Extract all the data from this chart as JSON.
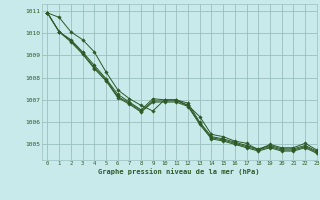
{
  "title": "Graphe pression niveau de la mer (hPa)",
  "background_color": "#c8eaea",
  "grid_color": "#9bbfbf",
  "line_color": "#2d5a27",
  "xlim": [
    -0.5,
    23
  ],
  "ylim": [
    1004.3,
    1011.3
  ],
  "yticks": [
    1005,
    1006,
    1007,
    1008,
    1009,
    1010,
    1011
  ],
  "xticks": [
    0,
    1,
    2,
    3,
    4,
    5,
    6,
    7,
    8,
    9,
    10,
    11,
    12,
    13,
    14,
    15,
    16,
    17,
    18,
    19,
    20,
    21,
    22,
    23
  ],
  "series": [
    [
      1010.9,
      1010.7,
      1010.05,
      1009.7,
      1009.15,
      1008.25,
      1007.45,
      1007.05,
      1006.75,
      1006.5,
      1007.0,
      1007.0,
      1006.75,
      1006.25,
      1005.45,
      1005.35,
      1005.15,
      1005.05,
      1004.75,
      1005.0,
      1004.85,
      1004.85,
      1005.05,
      1004.75
    ],
    [
      1010.9,
      1010.05,
      1009.7,
      1009.15,
      1008.55,
      1007.95,
      1007.25,
      1006.9,
      1006.55,
      1007.05,
      1007.0,
      1007.0,
      1006.85,
      1006.0,
      1005.35,
      1005.25,
      1005.1,
      1004.95,
      1004.8,
      1004.95,
      1004.8,
      1004.8,
      1004.95,
      1004.7
    ],
    [
      1010.9,
      1010.05,
      1009.65,
      1009.1,
      1008.45,
      1007.9,
      1007.15,
      1006.85,
      1006.5,
      1006.95,
      1006.95,
      1006.95,
      1006.75,
      1005.95,
      1005.3,
      1005.2,
      1005.05,
      1004.9,
      1004.75,
      1004.9,
      1004.75,
      1004.75,
      1004.9,
      1004.65
    ],
    [
      1010.9,
      1010.05,
      1009.6,
      1009.05,
      1008.4,
      1007.85,
      1007.1,
      1006.8,
      1006.45,
      1006.9,
      1006.9,
      1006.9,
      1006.7,
      1005.9,
      1005.25,
      1005.15,
      1005.0,
      1004.85,
      1004.7,
      1004.85,
      1004.7,
      1004.7,
      1004.85,
      1004.6
    ]
  ]
}
